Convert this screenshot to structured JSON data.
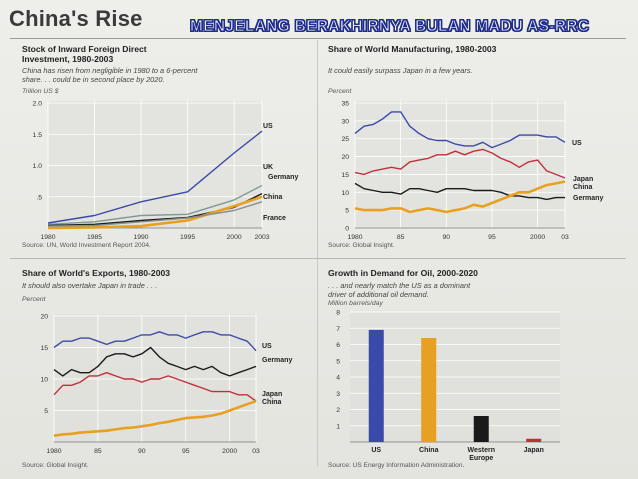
{
  "page": {
    "title": "China's Rise",
    "banner": "MENJELANG BERAKHIRNYA BULAN MADU AS-RRC"
  },
  "colors": {
    "US": "#3b4aa8",
    "UK": "#7f9a96",
    "Germany": "#1a1a1a",
    "China": "#e8a020",
    "France": "#8a8f8c",
    "Japan": "#c0303a"
  },
  "chart_data": [
    {
      "type": "line",
      "title_lines": [
        "Stock of Inward Foreign Direct",
        "Investment, 1980-2003"
      ],
      "subtitle_lines": [
        "China has risen from negligible in 1980 to a 6-percent",
        "share. . . could be in second place by 2020."
      ],
      "ylabel": "Trillion US $",
      "source": "Source: UN, World Investment Report 2004.",
      "xlim": [
        1980,
        2003
      ],
      "ylim": [
        0,
        2.0
      ],
      "xticks": [
        1980,
        1985,
        1990,
        1995,
        2000,
        2003
      ],
      "xtick_labels": [
        "1980",
        "1985",
        "1990",
        "1995",
        "2000",
        "2003"
      ],
      "yticks": [
        0.5,
        1.0,
        1.5,
        2.0
      ],
      "ytick_labels": [
        ".5",
        "1.0",
        "1.5",
        "2.0"
      ],
      "series": [
        {
          "name": "US",
          "x": [
            1980,
            1985,
            1990,
            1995,
            2000,
            2003
          ],
          "y": [
            0.08,
            0.2,
            0.42,
            0.58,
            1.2,
            1.55
          ]
        },
        {
          "name": "UK",
          "x": [
            1980,
            1985,
            1990,
            1995,
            2000,
            2003
          ],
          "y": [
            0.06,
            0.1,
            0.2,
            0.22,
            0.45,
            0.68
          ]
        },
        {
          "name": "Germany",
          "x": [
            1980,
            1985,
            1990,
            1995,
            2000,
            2003
          ],
          "y": [
            0.04,
            0.06,
            0.12,
            0.17,
            0.33,
            0.55
          ]
        },
        {
          "name": "China",
          "x": [
            1980,
            1985,
            1990,
            1995,
            2000,
            2003
          ],
          "y": [
            0.0,
            0.01,
            0.03,
            0.12,
            0.35,
            0.5
          ]
        },
        {
          "name": "France",
          "x": [
            1980,
            1985,
            1990,
            1995,
            2000,
            2003
          ],
          "y": [
            0.03,
            0.04,
            0.1,
            0.16,
            0.28,
            0.42
          ]
        }
      ],
      "legend_labels": [
        "US",
        "UK",
        "Germany",
        "China",
        "France"
      ]
    },
    {
      "type": "line",
      "title_lines": [
        "Share of World Manufacturing, 1980-2003"
      ],
      "subtitle_lines": [
        "It could easily surpass Japan in a few years."
      ],
      "ylabel": "Percent",
      "source": "Source: Global Insight.",
      "xlim": [
        1980,
        2003
      ],
      "ylim": [
        0,
        35
      ],
      "xticks": [
        1980,
        1985,
        1990,
        1995,
        2000,
        2003
      ],
      "xtick_labels": [
        "1980",
        "85",
        "90",
        "95",
        "2000",
        "03"
      ],
      "yticks": [
        0,
        5,
        10,
        15,
        20,
        25,
        30,
        35
      ],
      "ytick_labels": [
        "0",
        "5",
        "10",
        "15",
        "20",
        "25",
        "30",
        "35"
      ],
      "series": [
        {
          "name": "US",
          "x": [
            1980,
            1981,
            1982,
            1983,
            1984,
            1985,
            1986,
            1987,
            1988,
            1989,
            1990,
            1991,
            1992,
            1993,
            1994,
            1995,
            1996,
            1997,
            1998,
            1999,
            2000,
            2001,
            2002,
            2003
          ],
          "y": [
            26.5,
            28.5,
            29,
            30.5,
            32.5,
            32.5,
            28.5,
            26.5,
            25,
            24.5,
            24.5,
            23.5,
            23,
            23,
            24,
            22.5,
            23.5,
            24.5,
            26,
            26,
            26,
            25.5,
            25.5,
            24
          ]
        },
        {
          "name": "Japan",
          "x": [
            1980,
            1981,
            1982,
            1983,
            1984,
            1985,
            1986,
            1987,
            1988,
            1989,
            1990,
            1991,
            1992,
            1993,
            1994,
            1995,
            1996,
            1997,
            1998,
            1999,
            2000,
            2001,
            2002,
            2003
          ],
          "y": [
            15.5,
            15,
            16,
            16.5,
            17,
            16.5,
            18.5,
            19,
            19.5,
            20.5,
            20.5,
            21.5,
            20.5,
            21.5,
            22,
            21,
            19.5,
            18.5,
            17,
            18.5,
            19,
            16,
            15,
            14
          ]
        },
        {
          "name": "Germany",
          "x": [
            1980,
            1981,
            1982,
            1983,
            1984,
            1985,
            1986,
            1987,
            1988,
            1989,
            1990,
            1991,
            1992,
            1993,
            1994,
            1995,
            1996,
            1997,
            1998,
            1999,
            2000,
            2001,
            2002,
            2003
          ],
          "y": [
            12.5,
            11,
            10.5,
            10,
            10,
            9.5,
            11,
            11,
            10.5,
            10,
            11,
            11,
            11,
            10.5,
            10.5,
            10.5,
            10,
            9,
            9,
            8.5,
            8.5,
            8,
            8.5,
            8.5
          ]
        },
        {
          "name": "China",
          "x": [
            1980,
            1981,
            1982,
            1983,
            1984,
            1985,
            1986,
            1987,
            1988,
            1989,
            1990,
            1991,
            1992,
            1993,
            1994,
            1995,
            1996,
            1997,
            1998,
            1999,
            2000,
            2001,
            2002,
            2003
          ],
          "y": [
            5.5,
            5,
            5,
            5,
            5.5,
            5.5,
            4.5,
            5,
            5.5,
            5,
            4.5,
            5,
            5.5,
            6.5,
            6,
            7,
            8,
            9,
            10,
            10,
            11,
            12,
            12.5,
            13
          ]
        }
      ],
      "legend_labels": [
        "US",
        "Japan",
        "China",
        "Germany"
      ]
    },
    {
      "type": "line",
      "title_lines": [
        "Share of World's Exports, 1980-2003"
      ],
      "subtitle_lines": [
        "It should also overtake Japan in trade . . ."
      ],
      "ylabel": "Percent",
      "source": "Source: Global Insight.",
      "xlim": [
        1980,
        2003
      ],
      "ylim": [
        0,
        20
      ],
      "xticks": [
        1980,
        1985,
        1990,
        1995,
        2000,
        2003
      ],
      "xtick_labels": [
        "1980",
        "85",
        "90",
        "95",
        "2000",
        "03"
      ],
      "yticks": [
        5,
        10,
        15,
        20
      ],
      "ytick_labels": [
        "5",
        "10",
        "15",
        "20"
      ],
      "series": [
        {
          "name": "US",
          "x": [
            1980,
            1981,
            1982,
            1983,
            1984,
            1985,
            1986,
            1987,
            1988,
            1989,
            1990,
            1991,
            1992,
            1993,
            1994,
            1995,
            1996,
            1997,
            1998,
            1999,
            2000,
            2001,
            2002,
            2003
          ],
          "y": [
            15,
            16,
            16,
            16.5,
            16.5,
            16,
            15.5,
            16,
            16,
            16.5,
            17,
            17,
            17.5,
            17,
            17,
            16.5,
            17,
            17.5,
            17.5,
            17,
            17,
            16.5,
            16,
            14.5
          ]
        },
        {
          "name": "Germany",
          "x": [
            1980,
            1981,
            1982,
            1983,
            1984,
            1985,
            1986,
            1987,
            1988,
            1989,
            1990,
            1991,
            1992,
            1993,
            1994,
            1995,
            1996,
            1997,
            1998,
            1999,
            2000,
            2001,
            2002,
            2003
          ],
          "y": [
            11.5,
            10.5,
            11.5,
            11,
            11,
            12,
            13.5,
            14,
            14,
            13.5,
            14,
            15,
            13.5,
            12.5,
            12,
            11.5,
            12,
            11.5,
            12,
            11,
            10.5,
            11,
            11.5,
            12
          ]
        },
        {
          "name": "Japan",
          "x": [
            1980,
            1981,
            1982,
            1983,
            1984,
            1985,
            1986,
            1987,
            1988,
            1989,
            1990,
            1991,
            1992,
            1993,
            1994,
            1995,
            1996,
            1997,
            1998,
            1999,
            2000,
            2001,
            2002,
            2003
          ],
          "y": [
            7.5,
            9,
            9,
            9.5,
            10.5,
            10.5,
            11,
            10.5,
            10,
            10,
            9.5,
            10,
            10,
            10.5,
            10,
            9.5,
            9,
            8.5,
            8,
            8,
            8,
            7.5,
            7.5,
            6.5
          ]
        },
        {
          "name": "China",
          "x": [
            1980,
            1981,
            1982,
            1983,
            1984,
            1985,
            1986,
            1987,
            1988,
            1989,
            1990,
            1991,
            1992,
            1993,
            1994,
            1995,
            1996,
            1997,
            1998,
            1999,
            2000,
            2001,
            2002,
            2003
          ],
          "y": [
            1,
            1.2,
            1.3,
            1.5,
            1.6,
            1.7,
            1.8,
            2,
            2.2,
            2.3,
            2.5,
            2.7,
            3,
            3.2,
            3.5,
            3.8,
            3.9,
            4,
            4.2,
            4.5,
            5,
            5.5,
            6,
            6.5
          ]
        }
      ],
      "legend_labels": [
        "US",
        "Germany",
        "Japan",
        "China"
      ]
    },
    {
      "type": "bar",
      "title_lines": [
        "Growth in Demand for Oil, 2000-2020"
      ],
      "subtitle_lines": [
        ". . . and nearly match the US as a dominant",
        "driver of additional oil demand."
      ],
      "ylabel": "Million barrels/day",
      "source": "Source: US Energy Information Administration.",
      "ylim": [
        0,
        8
      ],
      "yticks": [
        1,
        2,
        3,
        4,
        5,
        6,
        7,
        8
      ],
      "ytick_labels": [
        "1",
        "2",
        "3",
        "4",
        "5",
        "6",
        "7",
        "8"
      ],
      "categories": [
        "US",
        "China",
        "Western Europe",
        "Japan"
      ],
      "category_label_lines": [
        [
          "US"
        ],
        [
          "China"
        ],
        [
          "Western",
          "Europe"
        ],
        [
          "Japan"
        ]
      ],
      "values": [
        6.9,
        6.4,
        1.6,
        0.2
      ],
      "bar_colors": [
        "#3b4aa8",
        "#e8a020",
        "#1a1a1a",
        "#c0303a"
      ]
    }
  ]
}
